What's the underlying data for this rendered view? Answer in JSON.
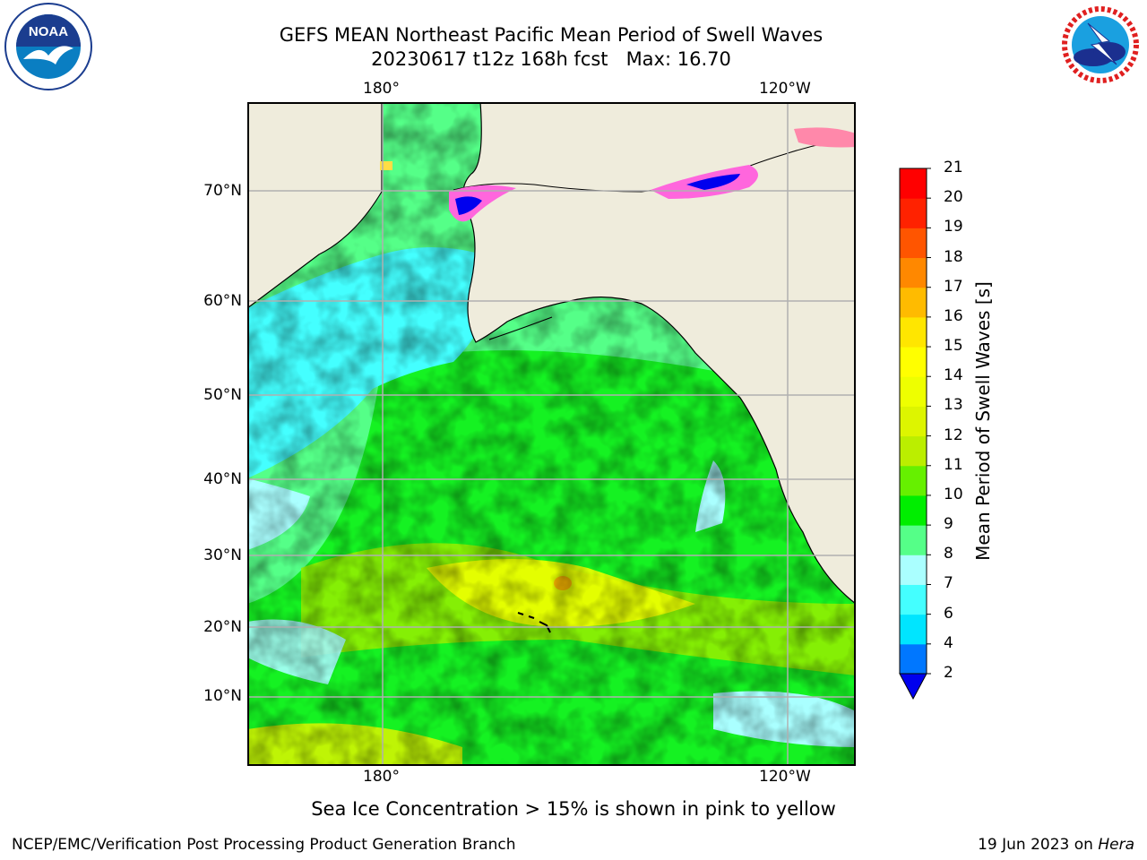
{
  "title": {
    "line1": "GEFS MEAN Northeast Pacific Mean Period of Swell Waves",
    "line2": "20230617 t12z 168h fcst   Max: 16.70"
  },
  "map": {
    "lon_labels": [
      "180°",
      "120°W"
    ],
    "lat_labels": [
      "70°N",
      "60°N",
      "50°N",
      "40°N",
      "30°N",
      "20°N",
      "10°N"
    ],
    "colors": {
      "land": "#efecdc",
      "grid": "#b0b0b0",
      "coast": "#000000"
    }
  },
  "colorbar": {
    "label": "Mean Period of Swell Waves [s]",
    "ticks": [
      "2",
      "4",
      "6",
      "7",
      "8",
      "9",
      "10",
      "11",
      "12",
      "13",
      "14",
      "15",
      "16",
      "17",
      "18",
      "19",
      "20",
      "21"
    ],
    "colors": [
      "#0000ee",
      "#0077ff",
      "#00e5ff",
      "#44ffff",
      "#aaffff",
      "#55ff88",
      "#00ee00",
      "#66f000",
      "#bbee00",
      "#ddf500",
      "#eeff00",
      "#ffff00",
      "#ffe600",
      "#ffbb00",
      "#ff8800",
      "#ff5500",
      "#ff2200",
      "#ff0000"
    ],
    "extend": "min"
  },
  "note": "Sea Ice Concentration > 15% is shown in pink to yellow",
  "credit": "NCEP/EMC/Verification Post Processing Product Generation Branch",
  "date_prefix": "19 Jun 2023 on ",
  "date_host": "Hera",
  "logos": {
    "noaa": "NOAA",
    "noaa_ring": "NATIONAL OCEANIC AND ATMOSPHERIC ADMINISTRATION · U.S. DEPARTMENT OF COMMERCE",
    "nws_ring": "NATIONAL WEATHER SERVICE"
  }
}
